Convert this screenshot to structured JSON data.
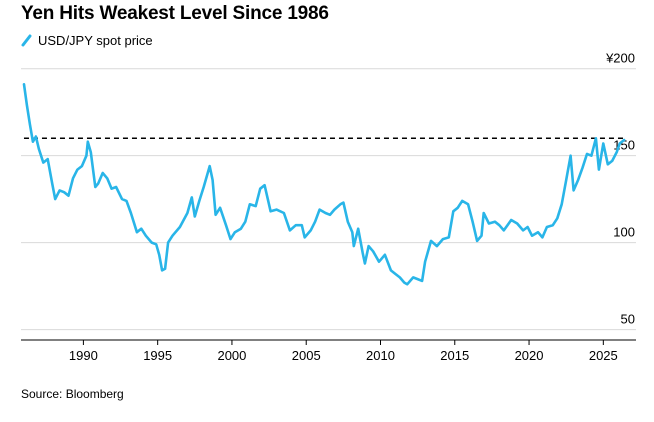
{
  "chart_data": {
    "type": "line",
    "title": "Yen Hits Weakest Level Since 1986",
    "xlabel": "",
    "ylabel": "",
    "xlim": [
      1985.8,
      2027.2
    ],
    "ylim": [
      44,
      205
    ],
    "x_ticks": [
      1990,
      1995,
      2000,
      2005,
      2010,
      2015,
      2020,
      2025
    ],
    "y_ticks": [
      {
        "value": 200,
        "label": "¥200"
      },
      {
        "value": 150,
        "label": "150"
      },
      {
        "value": 100,
        "label": "100"
      },
      {
        "value": 50,
        "label": "50"
      }
    ],
    "grid": "horizontal",
    "legend_position": "top-left",
    "reference_line": {
      "value": 160,
      "style": "dashed"
    },
    "series": [
      {
        "name": "USD/JPY spot price",
        "color": "#29B5E8",
        "points": [
          [
            1986.0,
            191
          ],
          [
            1986.2,
            179
          ],
          [
            1986.4,
            168
          ],
          [
            1986.6,
            158
          ],
          [
            1986.8,
            161
          ],
          [
            1987.0,
            154
          ],
          [
            1987.3,
            146
          ],
          [
            1987.6,
            148
          ],
          [
            1987.9,
            134
          ],
          [
            1988.1,
            125
          ],
          [
            1988.4,
            130
          ],
          [
            1988.7,
            129
          ],
          [
            1989.0,
            127
          ],
          [
            1989.3,
            137
          ],
          [
            1989.6,
            142
          ],
          [
            1989.9,
            144
          ],
          [
            1990.2,
            150
          ],
          [
            1990.3,
            158
          ],
          [
            1990.5,
            152
          ],
          [
            1990.8,
            132
          ],
          [
            1991.0,
            134
          ],
          [
            1991.3,
            140
          ],
          [
            1991.6,
            137
          ],
          [
            1991.9,
            131
          ],
          [
            1992.2,
            132
          ],
          [
            1992.6,
            125
          ],
          [
            1992.9,
            124
          ],
          [
            1993.2,
            117
          ],
          [
            1993.6,
            106
          ],
          [
            1993.9,
            108
          ],
          [
            1994.2,
            104
          ],
          [
            1994.6,
            100
          ],
          [
            1994.9,
            99
          ],
          [
            1995.1,
            93
          ],
          [
            1995.3,
            84
          ],
          [
            1995.5,
            85
          ],
          [
            1995.7,
            100
          ],
          [
            1996.0,
            104
          ],
          [
            1996.5,
            109
          ],
          [
            1997.0,
            117
          ],
          [
            1997.3,
            126
          ],
          [
            1997.5,
            115
          ],
          [
            1997.8,
            124
          ],
          [
            1998.1,
            132
          ],
          [
            1998.5,
            144
          ],
          [
            1998.7,
            136
          ],
          [
            1998.9,
            116
          ],
          [
            1999.2,
            120
          ],
          [
            1999.6,
            110
          ],
          [
            1999.9,
            102
          ],
          [
            2000.2,
            106
          ],
          [
            2000.6,
            108
          ],
          [
            2000.9,
            112
          ],
          [
            2001.2,
            122
          ],
          [
            2001.6,
            121
          ],
          [
            2001.9,
            131
          ],
          [
            2002.2,
            133
          ],
          [
            2002.6,
            118
          ],
          [
            2003.0,
            119
          ],
          [
            2003.5,
            117
          ],
          [
            2003.9,
            107
          ],
          [
            2004.3,
            110
          ],
          [
            2004.7,
            110
          ],
          [
            2004.9,
            103
          ],
          [
            2005.3,
            107
          ],
          [
            2005.6,
            112
          ],
          [
            2005.9,
            119
          ],
          [
            2006.3,
            117
          ],
          [
            2006.6,
            116
          ],
          [
            2006.9,
            119
          ],
          [
            2007.3,
            122
          ],
          [
            2007.5,
            123
          ],
          [
            2007.8,
            112
          ],
          [
            2008.1,
            106
          ],
          [
            2008.2,
            98
          ],
          [
            2008.5,
            108
          ],
          [
            2008.8,
            94
          ],
          [
            2008.95,
            88
          ],
          [
            2009.2,
            98
          ],
          [
            2009.5,
            95
          ],
          [
            2009.9,
            89
          ],
          [
            2010.3,
            93
          ],
          [
            2010.7,
            84
          ],
          [
            2011.0,
            82
          ],
          [
            2011.3,
            80
          ],
          [
            2011.6,
            77
          ],
          [
            2011.8,
            76
          ],
          [
            2012.2,
            80
          ],
          [
            2012.5,
            79
          ],
          [
            2012.8,
            78
          ],
          [
            2013.0,
            89
          ],
          [
            2013.4,
            101
          ],
          [
            2013.8,
            98
          ],
          [
            2014.2,
            102
          ],
          [
            2014.6,
            103
          ],
          [
            2014.9,
            118
          ],
          [
            2015.2,
            120
          ],
          [
            2015.5,
            124
          ],
          [
            2015.9,
            122
          ],
          [
            2016.2,
            112
          ],
          [
            2016.5,
            101
          ],
          [
            2016.8,
            104
          ],
          [
            2016.95,
            117
          ],
          [
            2017.3,
            111
          ],
          [
            2017.7,
            112
          ],
          [
            2018.0,
            110
          ],
          [
            2018.3,
            107
          ],
          [
            2018.8,
            113
          ],
          [
            2019.2,
            111
          ],
          [
            2019.6,
            107
          ],
          [
            2019.9,
            109
          ],
          [
            2020.2,
            104
          ],
          [
            2020.6,
            106
          ],
          [
            2020.9,
            103
          ],
          [
            2021.2,
            109
          ],
          [
            2021.6,
            110
          ],
          [
            2021.9,
            114
          ],
          [
            2022.2,
            122
          ],
          [
            2022.5,
            136
          ],
          [
            2022.8,
            150
          ],
          [
            2023.0,
            130
          ],
          [
            2023.3,
            136
          ],
          [
            2023.6,
            143
          ],
          [
            2023.9,
            151
          ],
          [
            2024.2,
            150
          ],
          [
            2024.5,
            160
          ],
          [
            2024.7,
            142
          ],
          [
            2025.0,
            157
          ],
          [
            2025.3,
            145
          ],
          [
            2025.6,
            147
          ],
          [
            2025.9,
            152
          ],
          [
            2026.1,
            157
          ],
          [
            2026.4,
            159
          ]
        ]
      }
    ]
  },
  "legend": {
    "label": "USD/JPY spot price"
  },
  "source": "Source: Bloomberg"
}
